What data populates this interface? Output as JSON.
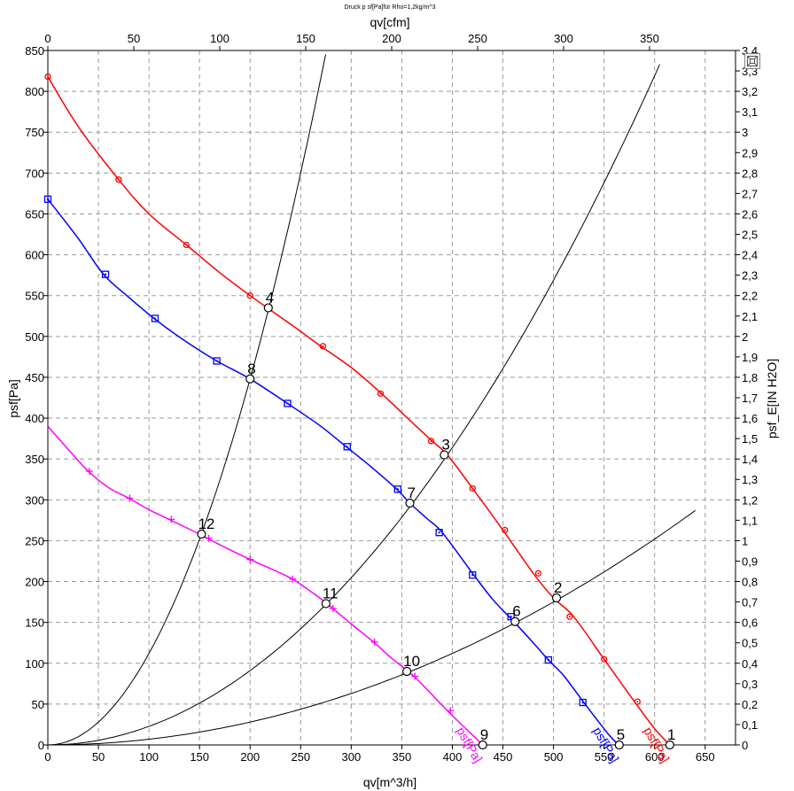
{
  "chart_data": {
    "type": "line",
    "title": "Druck p sf[Pa]für Rho=1,2kg/m^3",
    "xlabel": "qv[m^3/h]",
    "ylabel": "psf[Pa]",
    "x2label": "qv[cfm]",
    "y2label": "psf_E[IN H2O]",
    "xlim": [
      0,
      680
    ],
    "ylim": [
      0,
      850
    ],
    "x2lim": [
      0,
      400
    ],
    "y2lim": [
      0,
      3.4
    ],
    "grid": true,
    "x_ticks": [
      0,
      50,
      100,
      150,
      200,
      250,
      300,
      350,
      400,
      450,
      500,
      550,
      600,
      650
    ],
    "y_ticks": [
      0,
      50,
      100,
      150,
      200,
      250,
      300,
      350,
      400,
      450,
      500,
      550,
      600,
      650,
      700,
      750,
      800,
      850
    ],
    "x2_ticks": [
      0,
      50,
      100,
      150,
      200,
      250,
      300,
      350
    ],
    "y2_ticks": [
      "0",
      "0,1",
      "0,2",
      "0,3",
      "0,4",
      "0,5",
      "0,6",
      "0,7",
      "0,8",
      "0,9",
      "1",
      "1,1",
      "1,2",
      "1,3",
      "1,4",
      "1,5",
      "1,6",
      "1,7",
      "1,8",
      "1,9",
      "2",
      "2,1",
      "2,2",
      "2,3",
      "2,4",
      "2,5",
      "2,6",
      "2,7",
      "2,8",
      "2,9",
      "3",
      "3,1",
      "3,2",
      "3,3",
      "3,4"
    ],
    "series": [
      {
        "name": "psf[Pa]",
        "color": "#ff0000",
        "marker": "circle",
        "x": [
          0,
          30,
          70,
          100,
          137,
          170,
          200,
          240,
          270,
          300,
          330,
          360,
          380,
          395,
          420,
          450,
          480,
          500,
          520,
          550,
          580,
          600,
          615
        ],
        "y": [
          818,
          757,
          692,
          650,
          612,
          578,
          550,
          515,
          488,
          462,
          430,
          395,
          372,
          355,
          314,
          263,
          210,
          180,
          157,
          105,
          53,
          20,
          0
        ],
        "markers_x": [
          0,
          70,
          137,
          200,
          272,
          329,
          379,
          420,
          452,
          485,
          516,
          550,
          583
        ],
        "markers_y": [
          818,
          692,
          612,
          550,
          488,
          430,
          372,
          314,
          263,
          210,
          157,
          105,
          53
        ]
      },
      {
        "name": "psf[Pa]",
        "color": "#0000ff",
        "marker": "square",
        "x": [
          0,
          30,
          55,
          80,
          105,
          135,
          167,
          200,
          237,
          270,
          295,
          320,
          345,
          358,
          375,
          390,
          420,
          440,
          460,
          480,
          495,
          510,
          530,
          555,
          565
        ],
        "y": [
          668,
          620,
          576,
          548,
          522,
          495,
          470,
          448,
          418,
          390,
          365,
          340,
          313,
          296,
          277,
          260,
          210,
          178,
          152,
          125,
          104,
          85,
          52,
          12,
          0
        ],
        "markers_x": [
          0,
          57,
          106,
          167,
          237,
          296,
          346,
          387,
          420,
          458,
          495,
          529
        ],
        "markers_y": [
          668,
          576,
          522,
          470,
          418,
          365,
          313,
          260,
          208,
          157,
          104,
          52
        ]
      },
      {
        "name": "psf[Pa]",
        "color": "#ff00ff",
        "marker": "plus",
        "x": [
          0,
          20,
          40,
          60,
          80,
          100,
          120,
          150,
          170,
          200,
          220,
          242,
          262,
          275,
          300,
          323,
          340,
          363,
          395,
          420,
          430
        ],
        "y": [
          390,
          362,
          335,
          315,
          302,
          288,
          276,
          258,
          245,
          227,
          216,
          203,
          186,
          174,
          148,
          125,
          106,
          83,
          42,
          12,
          0
        ],
        "markers_x": [
          41,
          81,
          122,
          159,
          200,
          242,
          282,
          323,
          363,
          398
        ],
        "markers_y": [
          335,
          302,
          276,
          253,
          227,
          203,
          167,
          126,
          84,
          42
        ]
      }
    ],
    "system_curves": [
      {
        "x": [
          0,
          20,
          40,
          60,
          80,
          100,
          120,
          140,
          160,
          180,
          200,
          220,
          240,
          260,
          275
        ],
        "y_at_x200": 448,
        "type": "quadratic",
        "y_end": 845
      },
      {
        "x": [
          0,
          50,
          100,
          150,
          200,
          250,
          300,
          350,
          400,
          450,
          500,
          550,
          600
        ],
        "y_at_x200": 91,
        "type": "quadratic",
        "y_end": 833
      },
      {
        "x": [
          0,
          100,
          200,
          300,
          400,
          500,
          600,
          637
        ],
        "y_at_x200": 28,
        "type": "quadratic",
        "y_end": 287
      }
    ],
    "operating_points": [
      {
        "label": "1",
        "x": 615,
        "y": 0
      },
      {
        "label": "2",
        "x": 503,
        "y": 180
      },
      {
        "label": "3",
        "x": 392,
        "y": 355
      },
      {
        "label": "4",
        "x": 218,
        "y": 535
      },
      {
        "label": "5",
        "x": 565,
        "y": 0
      },
      {
        "label": "6",
        "x": 462,
        "y": 151
      },
      {
        "label": "7",
        "x": 358,
        "y": 296
      },
      {
        "label": "8",
        "x": 200,
        "y": 448
      },
      {
        "label": "9",
        "x": 430,
        "y": 0
      },
      {
        "label": "10",
        "x": 355,
        "y": 90
      },
      {
        "label": "11",
        "x": 275,
        "y": 173
      },
      {
        "label": "12",
        "x": 152,
        "y": 258
      }
    ]
  },
  "ui": {
    "zoom_icon": "zoom-fit-icon"
  }
}
